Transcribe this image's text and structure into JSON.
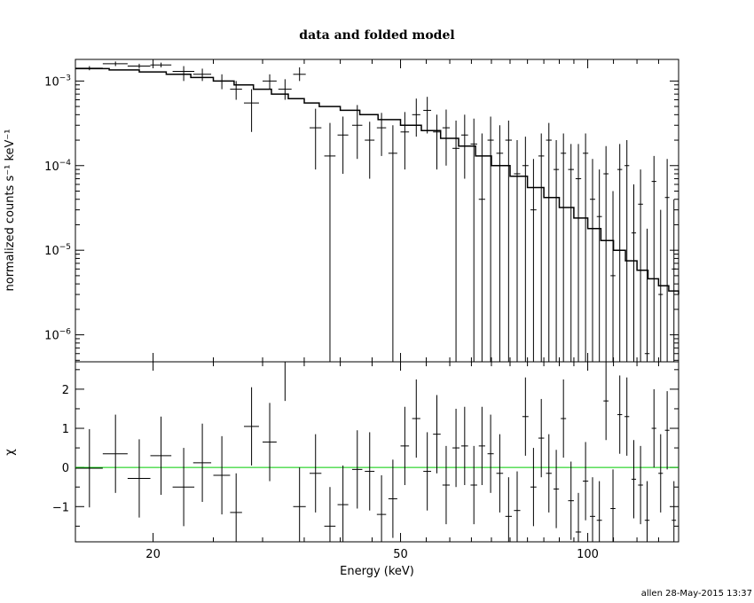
{
  "chart_data": {
    "type": "scatter",
    "title": "data and folded model",
    "footer": "allen 28-May-2015 13:37",
    "xlabel": "Energy (keV)",
    "xscale": "log",
    "xlim": [
      15,
      140
    ],
    "xticks": [
      {
        "value": 20,
        "label": "20"
      },
      {
        "value": 50,
        "label": "50"
      },
      {
        "value": 100,
        "label": "100"
      }
    ],
    "top_panel": {
      "ylabel": "normalized counts s⁻¹ keV⁻¹",
      "yscale": "log",
      "ylim": [
        4.8e-07,
        0.0018
      ],
      "yticks": [
        {
          "base": "10",
          "exp": "−3",
          "value": 0.001
        },
        {
          "base": "10",
          "exp": "−4",
          "value": 0.0001
        },
        {
          "base": "10",
          "exp": "−5",
          "value": 1e-05
        },
        {
          "base": "10",
          "exp": "−6",
          "value": 1e-06
        }
      ],
      "data": [
        {
          "x": 15.8,
          "xerr": 0.8,
          "y": 0.00142,
          "ylo": 0.00134,
          "yhi": 0.0015
        },
        {
          "x": 17.4,
          "xerr": 0.8,
          "y": 0.0016,
          "ylo": 0.0015,
          "yhi": 0.0017
        },
        {
          "x": 19.0,
          "xerr": 0.8,
          "y": 0.0015,
          "ylo": 0.0014,
          "yhi": 0.0016
        },
        {
          "x": 20.6,
          "xerr": 0.8,
          "y": 0.00155,
          "ylo": 0.00145,
          "yhi": 0.00165
        },
        {
          "x": 22.4,
          "xerr": 0.9,
          "y": 0.0013,
          "ylo": 0.001,
          "yhi": 0.0015
        },
        {
          "x": 24.0,
          "xerr": 0.8,
          "y": 0.0012,
          "ylo": 0.001,
          "yhi": 0.0014
        },
        {
          "x": 25.8,
          "xerr": 0.8,
          "y": 0.001,
          "ylo": 0.0008,
          "yhi": 0.0012
        },
        {
          "x": 27.2,
          "xerr": 0.6,
          "y": 0.0008,
          "ylo": 0.0006,
          "yhi": 0.001
        },
        {
          "x": 28.8,
          "xerr": 0.8,
          "y": 0.00055,
          "ylo": 0.00025,
          "yhi": 0.0008
        },
        {
          "x": 30.8,
          "xerr": 0.8,
          "y": 0.001,
          "ylo": 0.0008,
          "yhi": 0.0012
        },
        {
          "x": 32.6,
          "xerr": 0.8,
          "y": 0.0008,
          "ylo": 0.0006,
          "yhi": 0.00105
        },
        {
          "x": 34.4,
          "xerr": 0.8,
          "y": 0.0012,
          "ylo": 0.001,
          "yhi": 0.00145
        },
        {
          "x": 36.5,
          "xerr": 0.8,
          "y": 0.00028,
          "ylo": 9e-05,
          "yhi": 0.00047
        },
        {
          "x": 38.5,
          "xerr": 0.8,
          "y": 0.00013,
          "ylo": 4.8e-07,
          "yhi": 0.00032
        },
        {
          "x": 40.4,
          "xerr": 0.8,
          "y": 0.00023,
          "ylo": 8e-05,
          "yhi": 0.00038
        },
        {
          "x": 42.6,
          "xerr": 0.8,
          "y": 0.0003,
          "ylo": 0.00012,
          "yhi": 0.00052
        },
        {
          "x": 44.6,
          "xerr": 0.8,
          "y": 0.0002,
          "ylo": 7e-05,
          "yhi": 0.00033
        },
        {
          "x": 46.6,
          "xerr": 0.8,
          "y": 0.00028,
          "ylo": 0.00013,
          "yhi": 0.00042
        },
        {
          "x": 48.6,
          "xerr": 0.8,
          "y": 0.00014,
          "ylo": 4.8e-07,
          "yhi": 0.0003
        },
        {
          "x": 50.8,
          "xerr": 0.8,
          "y": 0.00025,
          "ylo": 9e-05,
          "yhi": 0.00043
        },
        {
          "x": 53.0,
          "xerr": 0.8,
          "y": 0.0004,
          "ylo": 0.00022,
          "yhi": 0.00062
        },
        {
          "x": 55.2,
          "xerr": 0.8,
          "y": 0.00045,
          "ylo": 0.00024,
          "yhi": 0.00065
        },
        {
          "x": 57.2,
          "xerr": 0.8,
          "y": 0.00025,
          "ylo": 9e-05,
          "yhi": 0.0004
        },
        {
          "x": 59.2,
          "xerr": 0.8,
          "y": 0.00028,
          "ylo": 0.0001,
          "yhi": 0.00046
        },
        {
          "x": 61.4,
          "xerr": 0.8,
          "y": 0.00016,
          "ylo": 4.8e-07,
          "yhi": 0.00034
        },
        {
          "x": 63.4,
          "xerr": 0.8,
          "y": 0.00023,
          "ylo": 7e-05,
          "yhi": 0.0004
        },
        {
          "x": 65.6,
          "xerr": 0.8,
          "y": 0.00018,
          "ylo": 4.8e-07,
          "yhi": 0.00036
        },
        {
          "x": 67.6,
          "xerr": 0.8,
          "y": 4e-05,
          "ylo": 4.8e-07,
          "yhi": 0.00024
        },
        {
          "x": 69.8,
          "xerr": 0.8,
          "y": 0.0002,
          "ylo": 4.8e-07,
          "yhi": 0.00038
        },
        {
          "x": 72.2,
          "xerr": 0.9,
          "y": 0.00014,
          "ylo": 4.8e-07,
          "yhi": 0.0003
        },
        {
          "x": 74.6,
          "xerr": 0.9,
          "y": 0.0002,
          "ylo": 4.8e-07,
          "yhi": 0.00034
        },
        {
          "x": 77.0,
          "xerr": 0.9,
          "y": 8e-05,
          "ylo": 4.8e-07,
          "yhi": 0.0002
        },
        {
          "x": 79.4,
          "xerr": 0.9,
          "y": 0.0001,
          "ylo": 4.8e-07,
          "yhi": 0.00022
        },
        {
          "x": 81.8,
          "xerr": 0.9,
          "y": 3e-05,
          "ylo": 4.8e-07,
          "yhi": 0.00012
        },
        {
          "x": 84.2,
          "xerr": 0.9,
          "y": 0.00013,
          "ylo": 4.8e-07,
          "yhi": 0.00024
        },
        {
          "x": 86.6,
          "xerr": 0.9,
          "y": 0.0002,
          "ylo": 4.8e-07,
          "yhi": 0.00032
        },
        {
          "x": 89.0,
          "xerr": 0.9,
          "y": 9e-05,
          "ylo": 4.8e-07,
          "yhi": 0.0002
        },
        {
          "x": 91.4,
          "xerr": 0.9,
          "y": 0.00014,
          "ylo": 4.8e-07,
          "yhi": 0.00024
        },
        {
          "x": 94.0,
          "xerr": 1.0,
          "y": 9e-05,
          "ylo": 4.8e-07,
          "yhi": 0.00018
        },
        {
          "x": 96.6,
          "xerr": 1.0,
          "y": 7e-05,
          "ylo": 4.8e-07,
          "yhi": 0.00018
        },
        {
          "x": 99.2,
          "xerr": 1.0,
          "y": 0.00014,
          "ylo": 4.8e-07,
          "yhi": 0.00024
        },
        {
          "x": 101.8,
          "xerr": 1.0,
          "y": 4e-05,
          "ylo": 4.8e-07,
          "yhi": 0.00012
        },
        {
          "x": 104.4,
          "xerr": 1.0,
          "y": 2.5e-05,
          "ylo": 4.8e-07,
          "yhi": 9e-05
        },
        {
          "x": 107.0,
          "xerr": 1.0,
          "y": 8e-05,
          "ylo": 4.8e-07,
          "yhi": 0.00017
        },
        {
          "x": 109.8,
          "xerr": 1.0,
          "y": 5e-06,
          "ylo": 4.8e-07,
          "yhi": 5e-05
        },
        {
          "x": 112.6,
          "xerr": 1.0,
          "y": 9e-05,
          "ylo": 4.8e-07,
          "yhi": 0.00018
        },
        {
          "x": 115.6,
          "xerr": 1.0,
          "y": 0.0001,
          "ylo": 4.8e-07,
          "yhi": 0.0002
        },
        {
          "x": 118.6,
          "xerr": 1.0,
          "y": 1.6e-05,
          "ylo": 4.8e-07,
          "yhi": 6e-05
        },
        {
          "x": 121.6,
          "xerr": 1.1,
          "y": 3.5e-05,
          "ylo": 4.8e-07,
          "yhi": 9e-05
        },
        {
          "x": 124.6,
          "xerr": 1.1,
          "y": 6e-07,
          "ylo": 4.8e-07,
          "yhi": 1.8e-05
        },
        {
          "x": 127.8,
          "xerr": 1.1,
          "y": 6.5e-05,
          "ylo": 4.8e-07,
          "yhi": 0.00013
        },
        {
          "x": 131.0,
          "xerr": 1.1,
          "y": 3e-06,
          "ylo": 4.8e-07,
          "yhi": 3e-05
        },
        {
          "x": 134.2,
          "xerr": 1.1,
          "y": 4.2e-05,
          "ylo": 4.8e-07,
          "yhi": 0.00012
        },
        {
          "x": 137.6,
          "xerr": 1.1,
          "y": 6e-06,
          "ylo": 4.8e-07,
          "yhi": 4e-05
        }
      ],
      "model": [
        [
          15.0,
          0.0014
        ],
        [
          17.0,
          0.00135
        ],
        [
          19.0,
          0.00128
        ],
        [
          21.0,
          0.0012
        ],
        [
          23.0,
          0.0011
        ],
        [
          25.0,
          0.001
        ],
        [
          27.0,
          0.0009
        ],
        [
          29.0,
          0.0008
        ],
        [
          31.0,
          0.0007
        ],
        [
          33.0,
          0.00062
        ],
        [
          35.0,
          0.00055
        ],
        [
          37.0,
          0.0005
        ],
        [
          40.0,
          0.00045
        ],
        [
          43.0,
          0.0004
        ],
        [
          46.0,
          0.00035
        ],
        [
          50.0,
          0.0003
        ],
        [
          54.0,
          0.00026
        ],
        [
          58.0,
          0.00021
        ],
        [
          62.0,
          0.00017
        ],
        [
          66.0,
          0.00013
        ],
        [
          70.0,
          0.0001
        ],
        [
          75.0,
          7.5e-05
        ],
        [
          80.0,
          5.5e-05
        ],
        [
          85.0,
          4.2e-05
        ],
        [
          90.0,
          3.2e-05
        ],
        [
          95.0,
          2.4e-05
        ],
        [
          100.0,
          1.8e-05
        ],
        [
          105.0,
          1.3e-05
        ],
        [
          110.0,
          1e-05
        ],
        [
          115.0,
          7.5e-06
        ],
        [
          120.0,
          5.8e-06
        ],
        [
          125.0,
          4.6e-06
        ],
        [
          130.0,
          3.8e-06
        ],
        [
          135.0,
          3.3e-06
        ],
        [
          140.0,
          3e-06
        ]
      ]
    },
    "bottom_panel": {
      "ylabel": "χ",
      "ylim": [
        -1.9,
        2.7
      ],
      "yticks": [
        {
          "value": 2,
          "label": "2"
        },
        {
          "value": 1,
          "label": "1"
        },
        {
          "value": 0,
          "label": "0"
        },
        {
          "value": -1,
          "label": "−1"
        }
      ],
      "zero_line_color": "#00cc00",
      "residuals": [
        {
          "x": 15.8,
          "xerr": 0.8,
          "y": -0.02,
          "err": 1.0
        },
        {
          "x": 17.4,
          "xerr": 0.8,
          "y": 0.35,
          "err": 1.0
        },
        {
          "x": 19.0,
          "xerr": 0.8,
          "y": -0.28,
          "err": 1.0
        },
        {
          "x": 20.6,
          "xerr": 0.8,
          "y": 0.3,
          "err": 1.0
        },
        {
          "x": 22.4,
          "xerr": 0.9,
          "y": -0.5,
          "err": 1.0
        },
        {
          "x": 24.0,
          "xerr": 0.8,
          "y": 0.12,
          "err": 1.0
        },
        {
          "x": 25.8,
          "xerr": 0.8,
          "y": -0.2,
          "err": 1.0
        },
        {
          "x": 27.2,
          "xerr": 0.6,
          "y": -1.15,
          "err": 1.0
        },
        {
          "x": 28.8,
          "xerr": 0.8,
          "y": 1.05,
          "err": 1.0
        },
        {
          "x": 30.8,
          "xerr": 0.8,
          "y": 0.65,
          "err": 1.0
        },
        {
          "x": 32.6,
          "xerr": 0.8,
          "y": 2.7,
          "err": 1.0
        },
        {
          "x": 34.4,
          "xerr": 0.8,
          "y": -1.0,
          "err": 1.0
        },
        {
          "x": 36.5,
          "xerr": 0.8,
          "y": -0.15,
          "err": 1.0
        },
        {
          "x": 38.5,
          "xerr": 0.8,
          "y": -1.5,
          "err": 1.0
        },
        {
          "x": 40.4,
          "xerr": 0.8,
          "y": -0.95,
          "err": 1.0
        },
        {
          "x": 42.6,
          "xerr": 0.8,
          "y": -0.05,
          "err": 1.0
        },
        {
          "x": 44.6,
          "xerr": 0.8,
          "y": -0.1,
          "err": 1.0
        },
        {
          "x": 46.6,
          "xerr": 0.8,
          "y": -1.2,
          "err": 1.0
        },
        {
          "x": 48.6,
          "xerr": 0.8,
          "y": -0.8,
          "err": 1.0
        },
        {
          "x": 50.8,
          "xerr": 0.8,
          "y": 0.55,
          "err": 1.0
        },
        {
          "x": 53.0,
          "xerr": 0.8,
          "y": 1.25,
          "err": 1.0
        },
        {
          "x": 55.2,
          "xerr": 0.8,
          "y": -0.1,
          "err": 1.0
        },
        {
          "x": 57.2,
          "xerr": 0.8,
          "y": 0.85,
          "err": 1.0
        },
        {
          "x": 59.2,
          "xerr": 0.8,
          "y": -0.45,
          "err": 1.0
        },
        {
          "x": 61.4,
          "xerr": 0.8,
          "y": 0.5,
          "err": 1.0
        },
        {
          "x": 63.4,
          "xerr": 0.8,
          "y": 0.55,
          "err": 1.0
        },
        {
          "x": 65.6,
          "xerr": 0.8,
          "y": -0.45,
          "err": 1.0
        },
        {
          "x": 67.6,
          "xerr": 0.8,
          "y": 0.55,
          "err": 1.0
        },
        {
          "x": 69.8,
          "xerr": 0.8,
          "y": 0.35,
          "err": 1.0
        },
        {
          "x": 72.2,
          "xerr": 0.9,
          "y": -0.15,
          "err": 1.0
        },
        {
          "x": 74.6,
          "xerr": 0.9,
          "y": -1.25,
          "err": 1.0
        },
        {
          "x": 77.0,
          "xerr": 0.9,
          "y": -1.1,
          "err": 1.0
        },
        {
          "x": 79.4,
          "xerr": 0.9,
          "y": 1.3,
          "err": 1.0
        },
        {
          "x": 81.8,
          "xerr": 0.9,
          "y": -0.5,
          "err": 1.0
        },
        {
          "x": 84.2,
          "xerr": 0.9,
          "y": 0.75,
          "err": 1.0
        },
        {
          "x": 86.6,
          "xerr": 0.9,
          "y": -0.15,
          "err": 1.0
        },
        {
          "x": 89.0,
          "xerr": 0.9,
          "y": -0.55,
          "err": 1.0
        },
        {
          "x": 91.4,
          "xerr": 0.9,
          "y": 1.25,
          "err": 1.0
        },
        {
          "x": 94.0,
          "xerr": 1.0,
          "y": -0.85,
          "err": 1.0
        },
        {
          "x": 96.6,
          "xerr": 1.0,
          "y": -1.65,
          "err": 1.0
        },
        {
          "x": 99.2,
          "xerr": 1.0,
          "y": -0.35,
          "err": 1.0
        },
        {
          "x": 101.8,
          "xerr": 1.0,
          "y": -1.25,
          "err": 1.0
        },
        {
          "x": 104.4,
          "xerr": 1.0,
          "y": -1.35,
          "err": 1.0
        },
        {
          "x": 107.0,
          "xerr": 1.0,
          "y": 1.7,
          "err": 1.0
        },
        {
          "x": 109.8,
          "xerr": 1.0,
          "y": -1.05,
          "err": 1.0
        },
        {
          "x": 112.6,
          "xerr": 1.0,
          "y": 1.35,
          "err": 1.0
        },
        {
          "x": 115.6,
          "xerr": 1.0,
          "y": 1.3,
          "err": 1.0
        },
        {
          "x": 118.6,
          "xerr": 1.0,
          "y": -0.3,
          "err": 1.0
        },
        {
          "x": 121.6,
          "xerr": 1.1,
          "y": -0.45,
          "err": 1.0
        },
        {
          "x": 124.6,
          "xerr": 1.1,
          "y": -1.35,
          "err": 1.0
        },
        {
          "x": 127.8,
          "xerr": 1.1,
          "y": 1.0,
          "err": 1.0
        },
        {
          "x": 131.0,
          "xerr": 1.1,
          "y": -0.15,
          "err": 1.0
        },
        {
          "x": 134.2,
          "xerr": 1.1,
          "y": 0.95,
          "err": 1.0
        },
        {
          "x": 137.6,
          "xerr": 1.1,
          "y": -1.35,
          "err": 1.0
        }
      ]
    }
  }
}
